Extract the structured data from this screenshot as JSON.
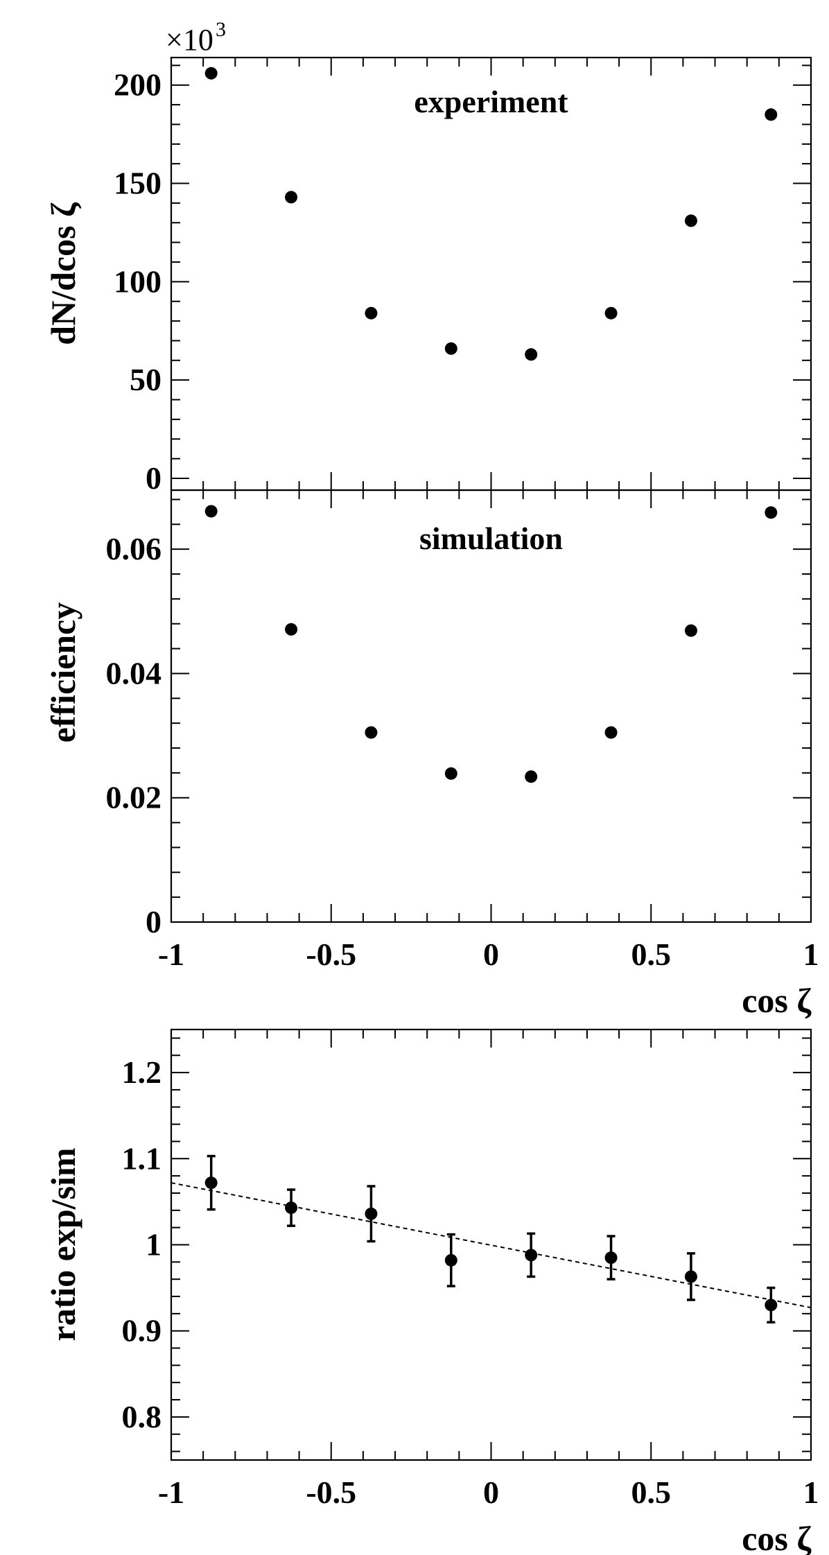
{
  "chart_data": [
    {
      "type": "scatter",
      "x": [
        -0.875,
        -0.625,
        -0.375,
        -0.125,
        0.125,
        0.375,
        0.625,
        0.875
      ],
      "values": [
        206,
        143,
        84,
        66,
        63,
        84,
        131,
        185
      ],
      "annotation": "experiment",
      "ylabel": "dN/dcos ζ",
      "y_multiplier": "×10",
      "y_multiplier_exp": "3",
      "xlim": [
        -1,
        1
      ],
      "ylim": [
        -6,
        214
      ],
      "yticks": [
        "0",
        "50",
        "100",
        "150",
        "200"
      ],
      "yticks_values": [
        0,
        50,
        100,
        150,
        200
      ],
      "grid": false
    },
    {
      "type": "scatter",
      "x": [
        -0.875,
        -0.625,
        -0.375,
        -0.125,
        0.125,
        0.375,
        0.625,
        0.875
      ],
      "values": [
        0.0661,
        0.0471,
        0.0305,
        0.0239,
        0.0234,
        0.0305,
        0.0469,
        0.0659
      ],
      "annotation": "simulation",
      "ylabel": "efficiency",
      "xlabel": "cos ζ",
      "xlim": [
        -1,
        1
      ],
      "ylim": [
        0,
        0.0695
      ],
      "yticks": [
        "0",
        "0.02",
        "0.04",
        "0.06"
      ],
      "yticks_values": [
        0,
        0.02,
        0.04,
        0.06
      ],
      "xticks": [
        "-1",
        "-0.5",
        "0",
        "0.5",
        "1"
      ],
      "xticks_values": [
        -1,
        -0.5,
        0,
        0.5,
        1
      ],
      "grid": false
    },
    {
      "type": "scatter",
      "x": [
        -0.875,
        -0.625,
        -0.375,
        -0.125,
        0.125,
        0.375,
        0.625,
        0.875
      ],
      "values": [
        1.072,
        1.043,
        1.036,
        0.982,
        0.988,
        0.985,
        0.963,
        0.93
      ],
      "errors": [
        0.031,
        0.021,
        0.032,
        0.03,
        0.025,
        0.025,
        0.027,
        0.02
      ],
      "fit": {
        "x": [
          -1,
          1
        ],
        "y": [
          1.072,
          0.927
        ]
      },
      "ylabel": "ratio exp/sim",
      "xlabel": "cos ζ",
      "xlim": [
        -1,
        1
      ],
      "ylim": [
        0.75,
        1.25
      ],
      "yticks": [
        "0.8",
        "0.9",
        "1",
        "1.1",
        "1.2"
      ],
      "yticks_values": [
        0.8,
        0.9,
        1.0,
        1.1,
        1.2
      ],
      "xticks": [
        "-1",
        "-0.5",
        "0",
        "0.5",
        "1"
      ],
      "xticks_values": [
        -1,
        -0.5,
        0,
        0.5,
        1
      ],
      "grid": false
    }
  ]
}
